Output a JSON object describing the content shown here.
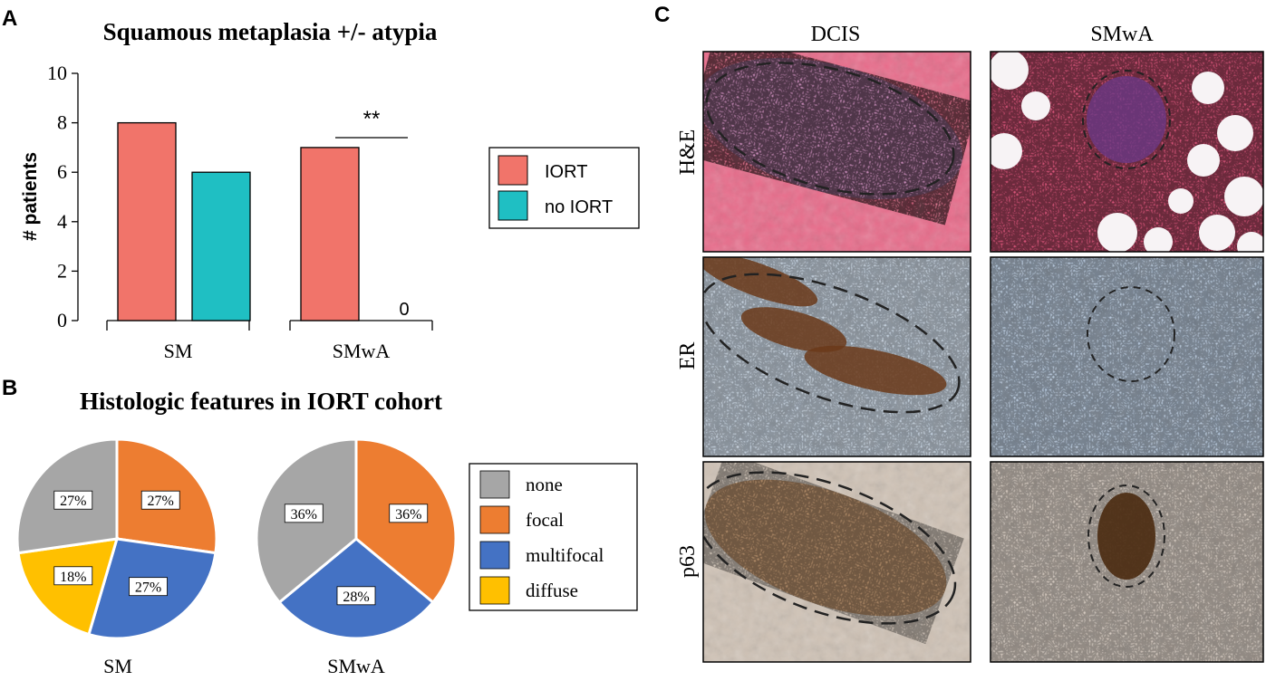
{
  "panel_letters": {
    "a": "A",
    "b": "B",
    "c": "C"
  },
  "colors": {
    "iort": "#F1746A",
    "no_iort": "#1FBFC3",
    "none": "#A6A6A6",
    "focal": "#ED7D31",
    "multifocal": "#4472C4",
    "diffuse": "#FFC000"
  },
  "chart_data": [
    {
      "type": "bar",
      "title": "Squamous metaplasia +/- atypia",
      "ylabel": "# patients",
      "xlabel": "",
      "ylim": [
        0,
        10
      ],
      "yticks": [
        "0",
        "2",
        "4",
        "6",
        "8",
        "10"
      ],
      "categories": [
        "SM",
        "SMwA"
      ],
      "series": [
        {
          "name": "IORT",
          "values": [
            8,
            7
          ]
        },
        {
          "name": "no IORT",
          "values": [
            6,
            0
          ]
        }
      ],
      "value_labels": [
        "",
        "0"
      ],
      "significance": {
        "label": "**",
        "group": "SMwA"
      },
      "legend_position": "right"
    },
    {
      "type": "pie",
      "title": "Histologic features in IORT cohort",
      "name": "SM",
      "slices": [
        {
          "label": "focal",
          "value": 27,
          "text": "27%"
        },
        {
          "label": "multifocal",
          "value": 27,
          "text": "27%"
        },
        {
          "label": "diffuse",
          "value": 18,
          "text": "18%"
        },
        {
          "label": "none",
          "value": 27,
          "text": "27%"
        }
      ]
    },
    {
      "type": "pie",
      "name": "SMwA",
      "slices": [
        {
          "label": "focal",
          "value": 36,
          "text": "36%"
        },
        {
          "label": "multifocal",
          "value": 28,
          "text": "28%"
        },
        {
          "label": "none",
          "value": 36,
          "text": "36%"
        }
      ],
      "legend": [
        "none",
        "focal",
        "multifocal",
        "diffuse"
      ],
      "legend_position": "right"
    }
  ],
  "micrographs": {
    "columns": [
      "DCIS",
      "SMwA"
    ],
    "rows": [
      "H&E",
      "ER",
      "p63"
    ]
  }
}
